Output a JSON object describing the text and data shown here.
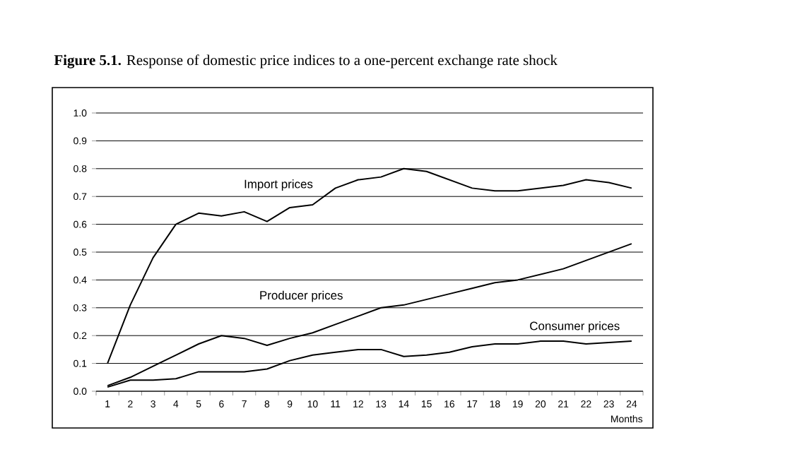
{
  "chart_data": {
    "type": "line",
    "title": "**Figure 5.1.** Response of domestic price indices to a one-percent exchange rate shock",
    "xlabel": "Months",
    "categories": [
      "1",
      "2",
      "3",
      "4",
      "5",
      "6",
      "7",
      "8",
      "9",
      "10",
      "11",
      "12",
      "13",
      "14",
      "15",
      "16",
      "17",
      "18",
      "19",
      "20",
      "21",
      "22",
      "23",
      "24"
    ],
    "series": [
      {
        "name": "Import prices",
        "color": "#000000",
        "values": [
          0.1,
          0.31,
          0.48,
          0.6,
          0.64,
          0.63,
          0.645,
          0.61,
          0.66,
          0.67,
          0.73,
          0.76,
          0.77,
          0.8,
          0.79,
          0.76,
          0.73,
          0.72,
          0.72,
          0.73,
          0.74,
          0.76,
          0.75,
          0.73
        ]
      },
      {
        "name": "Producer prices",
        "color": "#000000",
        "values": [
          0.02,
          0.05,
          0.09,
          0.13,
          0.17,
          0.2,
          0.19,
          0.165,
          0.19,
          0.21,
          0.24,
          0.27,
          0.3,
          0.31,
          0.33,
          0.35,
          0.37,
          0.39,
          0.4,
          0.42,
          0.44,
          0.47,
          0.5,
          0.53
        ]
      },
      {
        "name": "Consumer prices",
        "color": "#000000",
        "values": [
          0.015,
          0.04,
          0.04,
          0.045,
          0.07,
          0.07,
          0.07,
          0.08,
          0.11,
          0.13,
          0.14,
          0.15,
          0.15,
          0.125,
          0.13,
          0.14,
          0.16,
          0.17,
          0.17,
          0.18,
          0.18,
          0.17,
          0.175,
          0.18
        ]
      }
    ],
    "ylim": [
      0,
      1.0
    ],
    "yticks": [
      {
        "value": 0,
        "label": "0.0"
      },
      {
        "value": 0.1,
        "label": "0.1"
      },
      {
        "value": 0.2,
        "label": "0.2"
      },
      {
        "value": 0.3,
        "label": "0.3"
      },
      {
        "value": 0.4,
        "label": "0.4"
      },
      {
        "value": 0.5,
        "label": "0.5"
      },
      {
        "value": 0.6,
        "label": "0.6"
      },
      {
        "value": 0.7,
        "label": "0.7"
      },
      {
        "value": 0.8,
        "label": "0.8"
      },
      {
        "value": 0.9,
        "label": "0.9"
      },
      {
        "value": 1.0,
        "label": "1.0"
      }
    ],
    "grid": "y",
    "legend": false,
    "marker": "none",
    "line_style": "solid"
  }
}
